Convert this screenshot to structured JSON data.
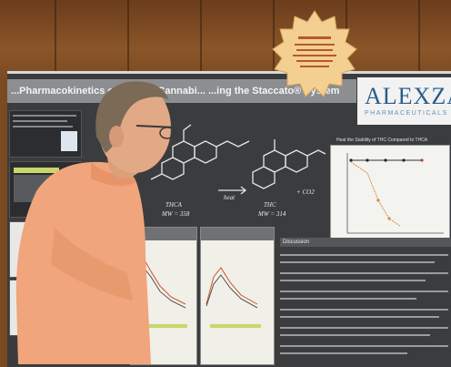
{
  "poster": {
    "title": "...Pharmacokinetics of Inhaled Cannabi...             ...ing the Staccato® System",
    "logo": "ALEXZA",
    "logo_sub": "PHARMACEUTICALS",
    "label_thca": "THCA",
    "label_thca_mw": "MW = 358",
    "label_heat": "heat",
    "label_thc": "THC",
    "label_thc_mw": "MW = 314",
    "label_co2": "+ CO2",
    "chart_title": "Heat the Stability of THC Compared to THCA",
    "discussion": "Discussion"
  },
  "colors": {
    "wall": "#7a4a22",
    "poster_bg": "#3b3c3e",
    "badge": "#f3cf92",
    "shirt": "#f0a57c",
    "logo": "#2a5d8c"
  }
}
